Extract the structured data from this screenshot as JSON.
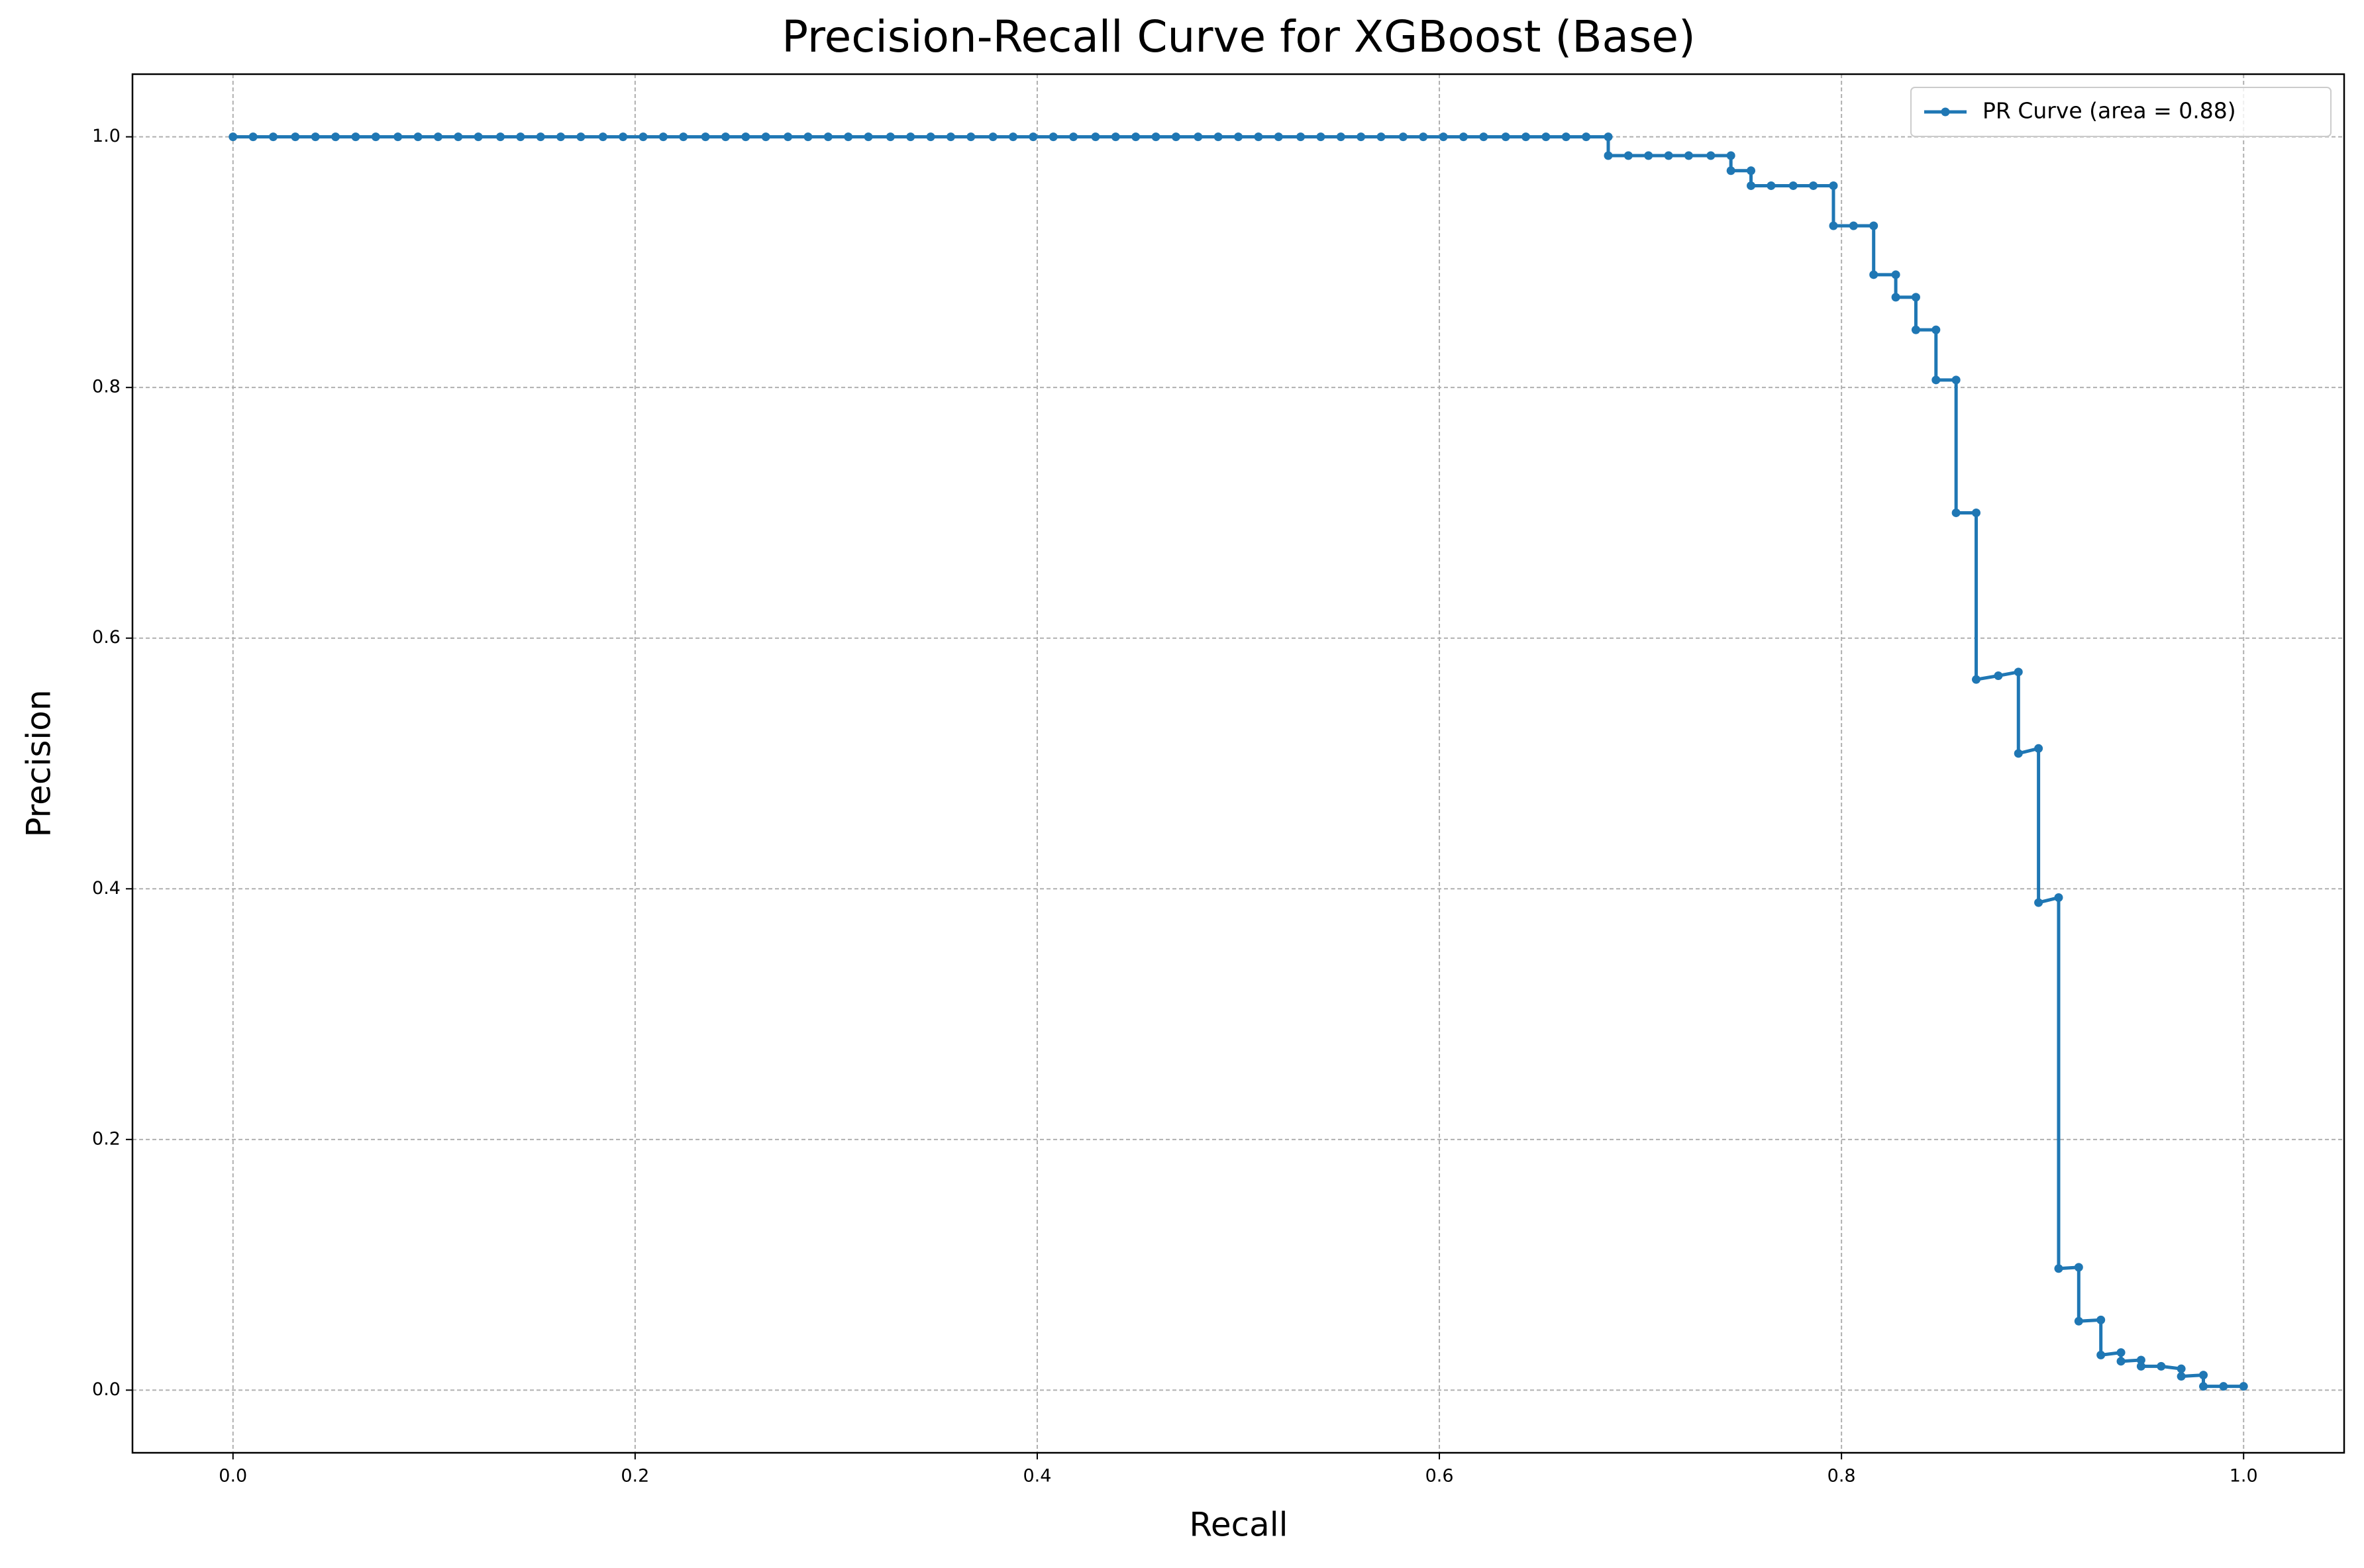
{
  "chart_data": {
    "type": "line",
    "title": "Precision-Recall Curve for XGBoost (Base)",
    "x_label": "Recall",
    "y_label": "Precision",
    "x": [
      0,
      0.01,
      0.02,
      0.031,
      0.041,
      0.051,
      0.061,
      0.071,
      0.082,
      0.092,
      0.102,
      0.112,
      0.122,
      0.133,
      0.143,
      0.153,
      0.163,
      0.173,
      0.184,
      0.194,
      0.204,
      0.214,
      0.224,
      0.235,
      0.245,
      0.255,
      0.265,
      0.276,
      0.286,
      0.296,
      0.306,
      0.316,
      0.327,
      0.337,
      0.347,
      0.357,
      0.367,
      0.378,
      0.388,
      0.398,
      0.408,
      0.418,
      0.429,
      0.439,
      0.449,
      0.459,
      0.469,
      0.48,
      0.49,
      0.5,
      0.51,
      0.52,
      0.531,
      0.541,
      0.551,
      0.561,
      0.571,
      0.582,
      0.592,
      0.602,
      0.612,
      0.622,
      0.633,
      0.643,
      0.653,
      0.663,
      0.673,
      0.684,
      0.684,
      0.694,
      0.704,
      0.714,
      0.724,
      0.735,
      0.745,
      0.745,
      0.755,
      0.755,
      0.765,
      0.776,
      0.786,
      0.796,
      0.796,
      0.806,
      0.816,
      0.816,
      0.827,
      0.827,
      0.837,
      0.837,
      0.847,
      0.847,
      0.857,
      0.857,
      0.867,
      0.867,
      0.878,
      0.888,
      0.888,
      0.898,
      0.898,
      0.908,
      0.908,
      0.918,
      0.918,
      0.929,
      0.929,
      0.939,
      0.939,
      0.949,
      0.949,
      0.959,
      0.969,
      0.969,
      0.98,
      0.98,
      0.99,
      1.0
    ],
    "series": [
      {
        "name": "PR Curve (area = 0.88)",
        "color": "#1f77b4",
        "values": [
          1,
          1,
          1,
          1,
          1,
          1,
          1,
          1,
          1,
          1,
          1,
          1,
          1,
          1,
          1,
          1,
          1,
          1,
          1,
          1,
          1,
          1,
          1,
          1,
          1,
          1,
          1,
          1,
          1,
          1,
          1,
          1,
          1,
          1,
          1,
          1,
          1,
          1,
          1,
          1,
          1,
          1,
          1,
          1,
          1,
          1,
          1,
          1,
          1,
          1,
          1,
          1,
          1,
          1,
          1,
          1,
          1,
          1,
          1,
          1,
          1,
          1,
          1,
          1,
          1,
          1,
          1,
          1,
          0.985,
          0.985,
          0.985,
          0.985,
          0.985,
          0.985,
          0.985,
          0.973,
          0.973,
          0.961,
          0.961,
          0.961,
          0.961,
          0.961,
          0.929,
          0.929,
          0.929,
          0.89,
          0.89,
          0.872,
          0.872,
          0.846,
          0.846,
          0.806,
          0.806,
          0.7,
          0.7,
          0.567,
          0.57,
          0.573,
          0.508,
          0.512,
          0.389,
          0.393,
          0.097,
          0.098,
          0.055,
          0.056,
          0.028,
          0.03,
          0.023,
          0.024,
          0.019,
          0.019,
          0.017,
          0.011,
          0.012,
          0.003,
          0.003,
          0.003
        ]
      }
    ],
    "xlim": [
      -0.05,
      1.05
    ],
    "ylim": [
      -0.05,
      1.05
    ],
    "xticks": [
      {
        "value": 0,
        "label": "0.0"
      },
      0.2,
      0.4,
      0.6,
      0.8,
      {
        "value": 1,
        "label": "1.0"
      }
    ],
    "yticks": [
      {
        "value": 0,
        "label": "0.0"
      },
      0.2,
      0.4,
      0.6,
      0.8,
      {
        "value": 1,
        "label": "1.0"
      }
    ],
    "grid": true,
    "legend": "upper right"
  }
}
